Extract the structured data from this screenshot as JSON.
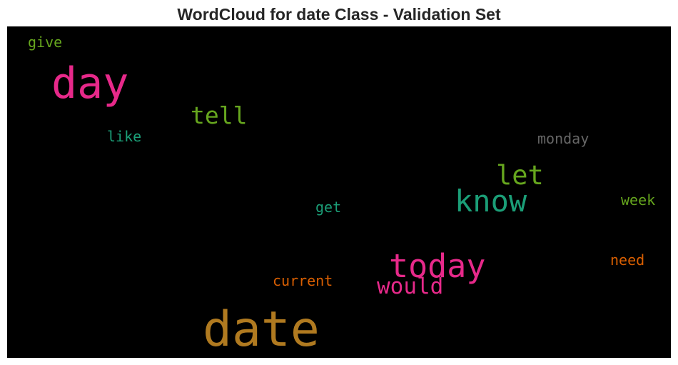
{
  "title": "WordCloud for date Class - Validation Set",
  "words": [
    {
      "text": "date",
      "color": "#b07a20"
    },
    {
      "text": "day",
      "color": "#e7298a"
    },
    {
      "text": "today",
      "color": "#e7298a"
    },
    {
      "text": "know",
      "color": "#1b9e77"
    },
    {
      "text": "let",
      "color": "#66a61e"
    },
    {
      "text": "tell",
      "color": "#66a61e"
    },
    {
      "text": "would",
      "color": "#e7298a"
    },
    {
      "text": "monday",
      "color": "#666666"
    },
    {
      "text": "give",
      "color": "#66a61e"
    },
    {
      "text": "like",
      "color": "#1b9e77"
    },
    {
      "text": "get",
      "color": "#1b9e77"
    },
    {
      "text": "week",
      "color": "#66a61e"
    },
    {
      "text": "need",
      "color": "#d95f02"
    },
    {
      "text": "current",
      "color": "#d95f02"
    }
  ]
}
